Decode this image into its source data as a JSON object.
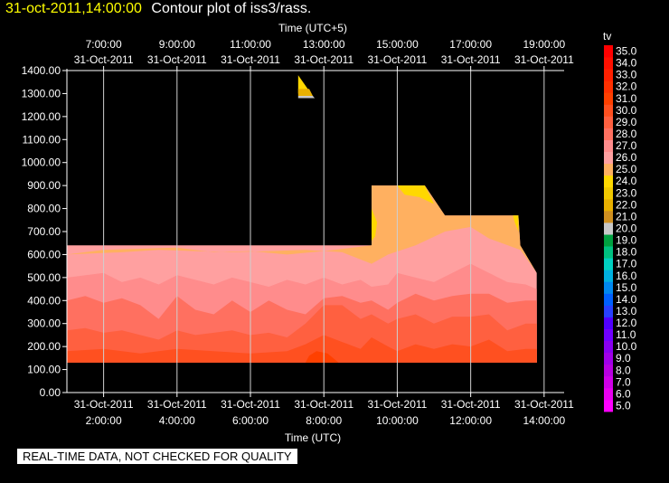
{
  "header": {
    "date_time": "31-oct-2011,14:00:00",
    "title": "Contour plot of iss3/rass."
  },
  "footer": {
    "quality_notice": "REAL-TIME DATA, NOT CHECKED FOR QUALITY"
  },
  "chart_data": {
    "type": "heatmap",
    "top_axis_label": "Time (UTC+5)",
    "bottom_axis_label": "Time (UTC)",
    "x_range_hours_utc": [
      1.0,
      14.25
    ],
    "y_range": [
      0,
      1400
    ],
    "y_ticks": [
      "0.00",
      "100.00",
      "200.00",
      "300.00",
      "400.00",
      "500.00",
      "600.00",
      "700.00",
      "800.00",
      "900.00",
      "1000.00",
      "1100.00",
      "1200.00",
      "1300.00",
      "1400.00"
    ],
    "bottom_ticks": [
      {
        "hour": 2,
        "time": "2:00:00",
        "date": "31-Oct-2011"
      },
      {
        "hour": 4,
        "time": "4:00:00",
        "date": "31-Oct-2011"
      },
      {
        "hour": 6,
        "time": "6:00:00",
        "date": "31-Oct-2011"
      },
      {
        "hour": 8,
        "time": "8:00:00",
        "date": "31-Oct-2011"
      },
      {
        "hour": 10,
        "time": "10:00:00",
        "date": "31-Oct-2011"
      },
      {
        "hour": 12,
        "time": "12:00:00",
        "date": "31-Oct-2011"
      },
      {
        "hour": 14,
        "time": "14:00:00",
        "date": "31-Oct-2011"
      }
    ],
    "top_ticks": [
      {
        "hour": 2,
        "time": "7:00:00",
        "date": "31-Oct-2011"
      },
      {
        "hour": 4,
        "time": "9:00:00",
        "date": "31-Oct-2011"
      },
      {
        "hour": 6,
        "time": "11:00:00",
        "date": "31-Oct-2011"
      },
      {
        "hour": 8,
        "time": "13:00:00",
        "date": "31-Oct-2011"
      },
      {
        "hour": 10,
        "time": "15:00:00",
        "date": "31-Oct-2011"
      },
      {
        "hour": 12,
        "time": "17:00:00",
        "date": "31-Oct-2011"
      },
      {
        "hour": 14,
        "time": "19:00:00",
        "date": "31-Oct-2011"
      }
    ],
    "grid": true,
    "colorbar": {
      "label": "tv",
      "levels": [
        "5.0",
        "6.0",
        "7.0",
        "8.0",
        "9.0",
        "10.0",
        "11.0",
        "12.0",
        "13.0",
        "14.0",
        "15.0",
        "16.0",
        "17.0",
        "18.0",
        "19.0",
        "20.0",
        "21.0",
        "22.0",
        "23.0",
        "24.0",
        "25.0",
        "26.0",
        "27.0",
        "28.0",
        "29.0",
        "30.0",
        "31.0",
        "32.0",
        "33.0",
        "34.0",
        "35.0"
      ],
      "colors": [
        "#ff00ff",
        "#e800f0",
        "#d000e8",
        "#b800e0",
        "#a000e8",
        "#8800f0",
        "#7000ff",
        "#5000ff",
        "#2840ff",
        "#0060ff",
        "#0088f0",
        "#00b0e0",
        "#00d0c0",
        "#00c080",
        "#00a040",
        "#c8c8c8",
        "#d09020",
        "#e8b000",
        "#f0c800",
        "#ffd800",
        "#ffb060",
        "#ffa0a0",
        "#ff8c8c",
        "#ff7060",
        "#ff6040",
        "#ff5020",
        "#ff4000",
        "#ff3000",
        "#ff2000",
        "#ff1000",
        "#ff0000"
      ]
    },
    "regions": [
      {
        "level": 26.0,
        "color": "#ffa0a0",
        "points": [
          [
            1.0,
            130
          ],
          [
            1.0,
            640
          ],
          [
            9.3,
            640
          ],
          [
            9.3,
            900
          ],
          [
            10.75,
            900
          ],
          [
            11.3,
            770
          ],
          [
            13.3,
            770
          ],
          [
            13.35,
            640
          ],
          [
            13.8,
            520
          ],
          [
            13.8,
            130
          ]
        ]
      },
      {
        "level": 25.0,
        "color": "#ffb060",
        "points": [
          [
            1.0,
            600
          ],
          [
            2.0,
            620
          ],
          [
            4.0,
            630
          ],
          [
            5.0,
            610
          ],
          [
            6.0,
            615
          ],
          [
            7.0,
            600
          ],
          [
            8.0,
            615
          ],
          [
            9.3,
            640
          ],
          [
            9.3,
            900
          ],
          [
            10.75,
            900
          ],
          [
            11.3,
            770
          ],
          [
            13.3,
            770
          ],
          [
            13.35,
            640
          ],
          [
            13.8,
            520
          ],
          [
            13.35,
            620
          ],
          [
            12.5,
            670
          ],
          [
            12.0,
            720
          ],
          [
            11.3,
            700
          ],
          [
            10.5,
            640
          ],
          [
            9.75,
            600
          ],
          [
            9.3,
            560
          ],
          [
            8.5,
            610
          ],
          [
            7.5,
            620
          ],
          [
            6.5,
            615
          ],
          [
            5.5,
            610
          ],
          [
            4.5,
            615
          ],
          [
            3.5,
            620
          ],
          [
            2.5,
            610
          ]
        ]
      },
      {
        "level": 24.0,
        "color": "#ffd800",
        "points": [
          [
            10.0,
            900
          ],
          [
            10.75,
            900
          ],
          [
            11.0,
            820
          ],
          [
            10.6,
            850
          ],
          [
            10.2,
            860
          ]
        ]
      },
      {
        "level": 24.0,
        "color": "#ffd800",
        "points": [
          [
            9.3,
            660
          ],
          [
            9.3,
            800
          ],
          [
            9.45,
            740
          ],
          [
            9.4,
            680
          ]
        ]
      },
      {
        "level": 24.0,
        "color": "#ffd800",
        "points": [
          [
            13.15,
            770
          ],
          [
            13.3,
            770
          ],
          [
            13.3,
            700
          ],
          [
            13.2,
            740
          ]
        ]
      },
      {
        "level": 24.0,
        "color": "#ffd800",
        "points": [
          [
            7.3,
            1380
          ],
          [
            7.3,
            1300
          ],
          [
            7.65,
            1300
          ]
        ]
      },
      {
        "level": 22.0,
        "color": "#e8b000",
        "points": [
          [
            7.3,
            1320
          ],
          [
            7.3,
            1290
          ],
          [
            7.7,
            1290
          ],
          [
            7.6,
            1320
          ]
        ]
      },
      {
        "level": 20.0,
        "color": "#c8c8c8",
        "points": [
          [
            7.3,
            1290
          ],
          [
            7.3,
            1280
          ],
          [
            7.75,
            1280
          ],
          [
            7.7,
            1290
          ]
        ]
      },
      {
        "level": 27.0,
        "color": "#ff8c8c",
        "points": [
          [
            1.0,
            130
          ],
          [
            1.0,
            500
          ],
          [
            2.0,
            520
          ],
          [
            2.5,
            480
          ],
          [
            3.0,
            500
          ],
          [
            3.5,
            470
          ],
          [
            4.0,
            510
          ],
          [
            4.5,
            490
          ],
          [
            5.0,
            470
          ],
          [
            5.5,
            500
          ],
          [
            6.0,
            480
          ],
          [
            6.5,
            460
          ],
          [
            7.0,
            490
          ],
          [
            7.5,
            470
          ],
          [
            8.0,
            500
          ],
          [
            8.5,
            470
          ],
          [
            9.0,
            490
          ],
          [
            9.3,
            460
          ],
          [
            9.75,
            470
          ],
          [
            10.0,
            520
          ],
          [
            10.5,
            500
          ],
          [
            11.0,
            480
          ],
          [
            11.5,
            520
          ],
          [
            12.0,
            560
          ],
          [
            12.5,
            520
          ],
          [
            13.0,
            480
          ],
          [
            13.5,
            470
          ],
          [
            13.8,
            450
          ],
          [
            13.8,
            130
          ]
        ]
      },
      {
        "level": 28.0,
        "color": "#ff7060",
        "points": [
          [
            1.0,
            130
          ],
          [
            1.0,
            400
          ],
          [
            1.5,
            420
          ],
          [
            2.0,
            390
          ],
          [
            2.5,
            410
          ],
          [
            3.0,
            380
          ],
          [
            3.5,
            320
          ],
          [
            4.0,
            420
          ],
          [
            4.5,
            360
          ],
          [
            5.0,
            340
          ],
          [
            5.5,
            400
          ],
          [
            6.0,
            350
          ],
          [
            6.5,
            400
          ],
          [
            7.0,
            360
          ],
          [
            7.5,
            340
          ],
          [
            8.0,
            410
          ],
          [
            8.5,
            420
          ],
          [
            9.0,
            390
          ],
          [
            9.3,
            400
          ],
          [
            9.75,
            360
          ],
          [
            10.0,
            390
          ],
          [
            10.5,
            430
          ],
          [
            11.0,
            400
          ],
          [
            11.5,
            420
          ],
          [
            12.0,
            430
          ],
          [
            12.5,
            430
          ],
          [
            13.0,
            390
          ],
          [
            13.5,
            400
          ],
          [
            13.8,
            400
          ],
          [
            13.8,
            130
          ]
        ]
      },
      {
        "level": 29.0,
        "color": "#ff6040",
        "points": [
          [
            1.0,
            130
          ],
          [
            1.0,
            270
          ],
          [
            1.5,
            280
          ],
          [
            2.0,
            260
          ],
          [
            2.5,
            270
          ],
          [
            3.0,
            250
          ],
          [
            3.5,
            230
          ],
          [
            4.0,
            270
          ],
          [
            4.5,
            250
          ],
          [
            5.0,
            260
          ],
          [
            5.5,
            270
          ],
          [
            6.0,
            250
          ],
          [
            6.5,
            260
          ],
          [
            7.0,
            240
          ],
          [
            7.5,
            300
          ],
          [
            8.0,
            380
          ],
          [
            8.5,
            380
          ],
          [
            9.0,
            320
          ],
          [
            9.3,
            340
          ],
          [
            9.75,
            300
          ],
          [
            10.0,
            320
          ],
          [
            10.5,
            340
          ],
          [
            11.0,
            300
          ],
          [
            11.5,
            330
          ],
          [
            12.0,
            330
          ],
          [
            12.5,
            340
          ],
          [
            13.0,
            270
          ],
          [
            13.5,
            300
          ],
          [
            13.8,
            300
          ],
          [
            13.8,
            130
          ]
        ]
      },
      {
        "level": 30.0,
        "color": "#ff5020",
        "points": [
          [
            1.0,
            130
          ],
          [
            1.0,
            180
          ],
          [
            2.0,
            190
          ],
          [
            3.0,
            170
          ],
          [
            4.0,
            190
          ],
          [
            5.0,
            180
          ],
          [
            6.0,
            170
          ],
          [
            7.0,
            180
          ],
          [
            7.5,
            210
          ],
          [
            8.0,
            250
          ],
          [
            8.5,
            220
          ],
          [
            9.0,
            190
          ],
          [
            9.3,
            240
          ],
          [
            9.75,
            200
          ],
          [
            10.0,
            180
          ],
          [
            10.5,
            210
          ],
          [
            11.0,
            190
          ],
          [
            11.5,
            210
          ],
          [
            12.0,
            200
          ],
          [
            12.5,
            230
          ],
          [
            13.0,
            180
          ],
          [
            13.5,
            190
          ],
          [
            13.8,
            190
          ],
          [
            13.8,
            130
          ]
        ]
      },
      {
        "level": 31.0,
        "color": "#ff4000",
        "points": [
          [
            7.5,
            130
          ],
          [
            7.6,
            160
          ],
          [
            7.8,
            180
          ],
          [
            8.1,
            170
          ],
          [
            8.4,
            130
          ]
        ]
      }
    ]
  }
}
